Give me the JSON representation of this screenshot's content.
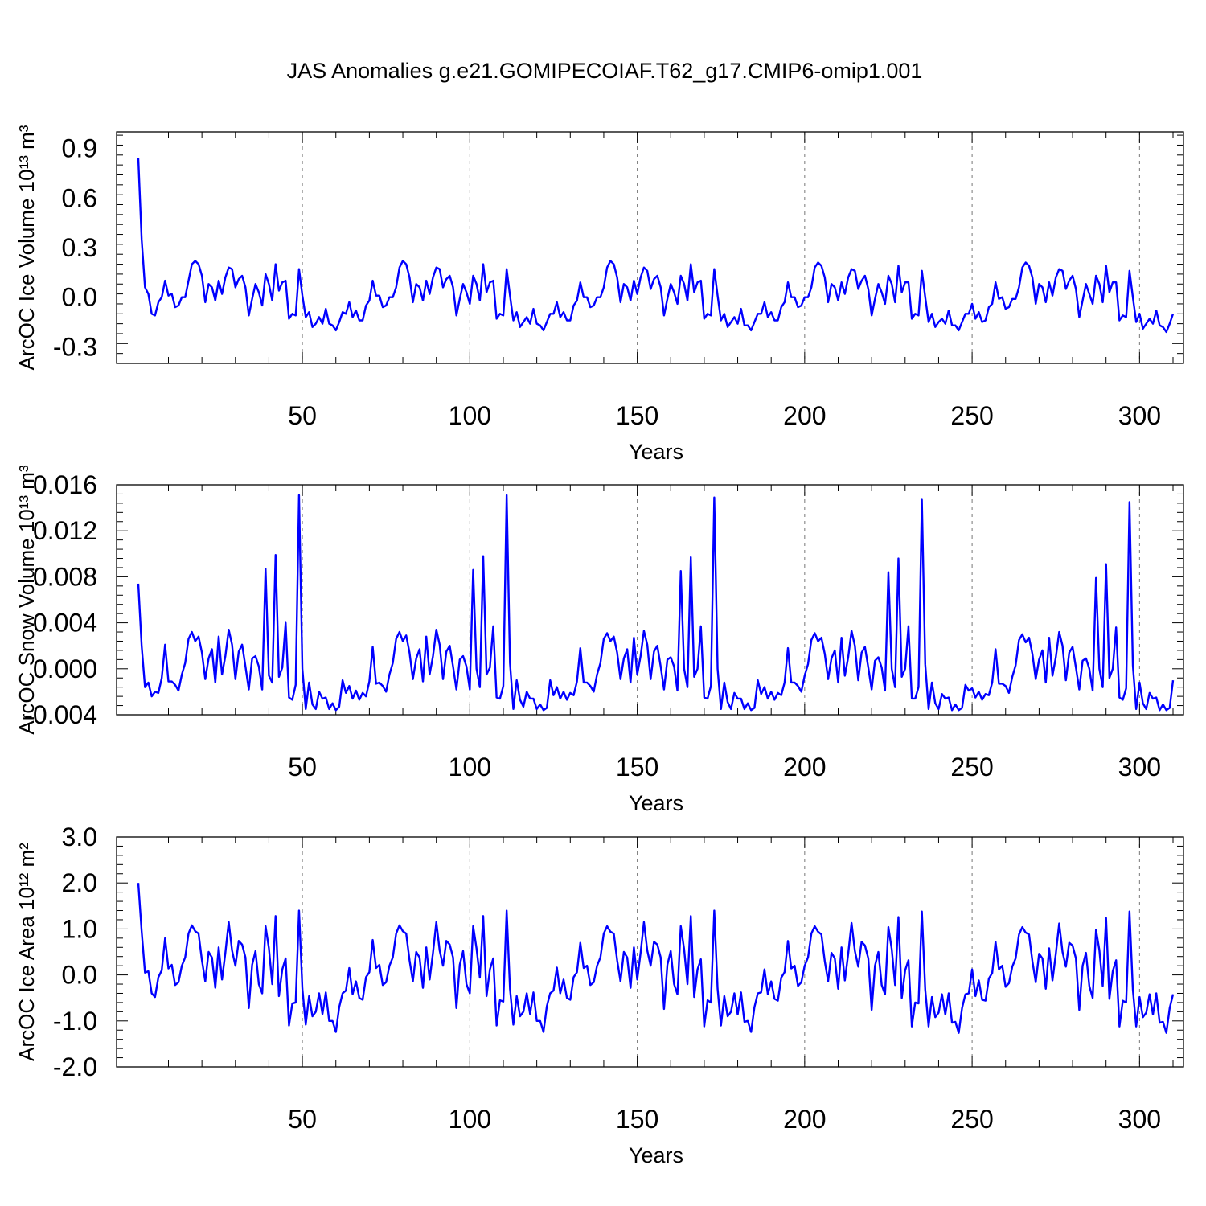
{
  "figure_title": "JAS Anomalies g.e21.GOMIPECOIAF.T62_g17.CMIP6-omip1.001",
  "line_color": "#0000ff",
  "chart_data": [
    {
      "type": "line",
      "title": "JAS Anomalies g.e21.GOMIPECOIAF.T62_g17.CMIP6-omip1.001",
      "xlabel": "Years",
      "ylabel": "ArcOC Ice Volume 10¹³ m³",
      "ylim": [
        -0.4,
        1.0
      ],
      "xlim": [
        1,
        310
      ],
      "xticks": [
        "50",
        "100",
        "150",
        "200",
        "250",
        "300"
      ],
      "yticks": [
        "0.9",
        "0.6",
        "0.3",
        "0.0",
        "-0.3"
      ],
      "series": [
        {
          "name": "ArcOC Ice Volume",
          "x_start": 1,
          "values": [
            0.84,
            0.35,
            0.06,
            0.02,
            -0.1,
            -0.11,
            -0.03,
            0.0,
            0.1,
            0.01,
            0.02,
            -0.06,
            -0.05,
            0.0,
            0.0,
            0.1,
            0.2,
            0.22,
            0.2,
            0.13,
            -0.03,
            0.08,
            0.06,
            -0.02,
            0.1,
            0.02,
            0.12,
            0.18,
            0.17,
            0.06,
            0.11,
            0.13,
            0.06,
            -0.11,
            -0.01,
            0.08,
            0.03,
            -0.05,
            0.14,
            0.08,
            -0.02,
            0.2,
            0.04,
            0.09,
            0.1,
            -0.13,
            -0.1,
            -0.11,
            0.17,
            0.01,
            -0.12,
            -0.09,
            -0.18,
            -0.16,
            -0.12,
            -0.16,
            -0.07,
            -0.16,
            -0.17,
            -0.2,
            -0.15,
            -0.09,
            -0.1,
            -0.03,
            -0.12,
            -0.08,
            -0.14,
            -0.14,
            -0.05,
            -0.02,
            0.1,
            0.01,
            0.01,
            -0.06,
            -0.05,
            0.0,
            0.0,
            0.06,
            0.18,
            0.22,
            0.2,
            0.12,
            -0.03,
            0.08,
            0.06,
            -0.02,
            0.1,
            0.02,
            0.12,
            0.18,
            0.17,
            0.06,
            0.11,
            0.13,
            0.06,
            -0.11,
            -0.01,
            0.08,
            0.03,
            -0.04,
            0.13,
            0.08,
            -0.02,
            0.2,
            0.03,
            0.09,
            0.1,
            -0.13,
            -0.1,
            -0.11,
            0.17,
            0.01,
            -0.14,
            -0.09,
            -0.18,
            -0.15,
            -0.12,
            -0.16,
            -0.07,
            -0.16,
            -0.17,
            -0.2,
            -0.15,
            -0.1,
            -0.1,
            -0.03,
            -0.12,
            -0.09,
            -0.14,
            -0.14,
            -0.05,
            -0.02,
            0.09,
            0.0,
            0.0,
            -0.06,
            -0.05,
            0.0,
            0.0,
            0.06,
            0.18,
            0.22,
            0.2,
            0.12,
            -0.03,
            0.08,
            0.06,
            -0.02,
            0.1,
            0.02,
            0.12,
            0.18,
            0.16,
            0.05,
            0.11,
            0.13,
            0.06,
            -0.11,
            -0.01,
            0.08,
            0.03,
            -0.04,
            0.13,
            0.08,
            -0.02,
            0.2,
            0.03,
            0.09,
            0.1,
            -0.13,
            -0.1,
            -0.11,
            0.17,
            0.01,
            -0.14,
            -0.1,
            -0.18,
            -0.15,
            -0.12,
            -0.16,
            -0.07,
            -0.17,
            -0.17,
            -0.2,
            -0.15,
            -0.1,
            -0.1,
            -0.03,
            -0.12,
            -0.09,
            -0.14,
            -0.14,
            -0.06,
            -0.03,
            0.09,
            0.0,
            0.0,
            -0.06,
            -0.05,
            0.0,
            0.0,
            0.06,
            0.18,
            0.21,
            0.19,
            0.12,
            -0.03,
            0.08,
            0.06,
            -0.02,
            0.09,
            0.02,
            0.12,
            0.17,
            0.16,
            0.05,
            0.1,
            0.13,
            0.05,
            -0.11,
            -0.01,
            0.08,
            0.03,
            -0.04,
            0.13,
            0.08,
            -0.03,
            0.19,
            0.03,
            0.09,
            0.09,
            -0.13,
            -0.1,
            -0.11,
            0.16,
            0.0,
            -0.15,
            -0.1,
            -0.18,
            -0.15,
            -0.13,
            -0.16,
            -0.08,
            -0.17,
            -0.17,
            -0.2,
            -0.15,
            -0.1,
            -0.1,
            -0.04,
            -0.13,
            -0.09,
            -0.15,
            -0.14,
            -0.06,
            -0.04,
            0.09,
            -0.01,
            0.0,
            -0.07,
            -0.06,
            -0.01,
            -0.01,
            0.06,
            0.18,
            0.21,
            0.19,
            0.12,
            -0.04,
            0.08,
            0.06,
            -0.03,
            0.09,
            0.01,
            0.12,
            0.17,
            0.16,
            0.05,
            0.1,
            0.13,
            0.05,
            -0.12,
            -0.02,
            0.08,
            0.02,
            -0.04,
            0.13,
            0.08,
            -0.03,
            0.19,
            0.03,
            0.09,
            0.09,
            -0.14,
            -0.11,
            -0.12,
            0.16,
            0.0,
            -0.15,
            -0.1,
            -0.19,
            -0.16,
            -0.13,
            -0.16,
            -0.08,
            -0.17,
            -0.18,
            -0.21,
            -0.16,
            -0.1
          ]
        }
      ]
    },
    {
      "type": "line",
      "xlabel": "Years",
      "ylabel": "ArcOC Snow Volume 10¹³ m³",
      "ylim": [
        -0.004,
        0.016
      ],
      "xlim": [
        1,
        310
      ],
      "xticks": [
        "50",
        "100",
        "150",
        "200",
        "250",
        "300"
      ],
      "yticks": [
        "0.016",
        "0.012",
        "0.008",
        "0.004",
        "0.000",
        "-0.004"
      ],
      "series": [
        {
          "name": "ArcOC Snow Volume",
          "x_start": 1,
          "values": [
            0.0074,
            0.002,
            -0.0016,
            -0.0012,
            -0.0024,
            -0.002,
            -0.0021,
            -0.0008,
            0.0021,
            -0.0011,
            -0.0011,
            -0.0014,
            -0.0019,
            -0.0005,
            0.0005,
            0.0026,
            0.0032,
            0.0024,
            0.0028,
            0.0014,
            -0.0009,
            0.0009,
            0.0017,
            -0.0012,
            0.0028,
            -0.0005,
            0.0011,
            0.0034,
            0.0021,
            -0.0009,
            0.0015,
            0.0021,
            0.0002,
            -0.0018,
            0.0009,
            0.0011,
            0.0002,
            -0.0018,
            0.0087,
            -0.0006,
            -0.0012,
            0.0099,
            -0.0007,
            0.0001,
            0.004,
            -0.0025,
            -0.0027,
            -0.0014,
            0.0151,
            0.0,
            -0.0035,
            -0.0012,
            -0.0031,
            -0.0035,
            -0.002,
            -0.0026,
            -0.0025,
            -0.0035,
            -0.003,
            -0.0036,
            -0.0033,
            -0.001,
            -0.0021,
            -0.0015,
            -0.0026,
            -0.0019,
            -0.0027,
            -0.0021,
            -0.0024,
            -0.0011,
            0.0019,
            -0.0013,
            -0.0012,
            -0.0015,
            -0.002,
            -0.0005,
            0.0005,
            0.0026,
            0.0032,
            0.0024,
            0.0029,
            0.0014,
            -0.0009,
            0.0009,
            0.0017,
            -0.0011,
            0.0028,
            -0.0005,
            0.0011,
            0.0034,
            0.0021,
            -0.0009,
            0.0015,
            0.002,
            0.0002,
            -0.0018,
            0.0008,
            0.0011,
            0.0002,
            -0.0018,
            0.0086,
            0.0,
            -0.0016,
            0.0098,
            -0.0005,
            0.0001,
            0.0037,
            -0.0025,
            -0.0026,
            -0.0015,
            0.0151,
            0.0005,
            -0.0035,
            -0.001,
            -0.0027,
            -0.0033,
            -0.002,
            -0.0026,
            -0.0026,
            -0.0035,
            -0.0031,
            -0.0036,
            -0.0034,
            -0.001,
            -0.0023,
            -0.0016,
            -0.0026,
            -0.002,
            -0.0027,
            -0.0021,
            -0.0023,
            -0.0011,
            0.0018,
            -0.0012,
            -0.0012,
            -0.0015,
            -0.002,
            -0.0005,
            0.0005,
            0.0026,
            0.0031,
            0.0024,
            0.0028,
            0.0014,
            -0.0009,
            0.0009,
            0.0017,
            -0.0012,
            0.0027,
            -0.0005,
            0.0011,
            0.0033,
            0.0021,
            -0.0009,
            0.0015,
            0.002,
            0.0002,
            -0.0018,
            0.0008,
            0.001,
            0.0002,
            -0.0019,
            0.0085,
            0.0,
            -0.0016,
            0.0097,
            -0.0007,
            0.0,
            0.0037,
            -0.0025,
            -0.0026,
            -0.0015,
            0.0149,
            0.0,
            -0.0035,
            -0.0012,
            -0.0029,
            -0.0035,
            -0.0021,
            -0.0026,
            -0.0026,
            -0.0035,
            -0.003,
            -0.0036,
            -0.0034,
            -0.001,
            -0.0022,
            -0.0016,
            -0.0026,
            -0.002,
            -0.0027,
            -0.0021,
            -0.0023,
            -0.0012,
            0.0018,
            -0.0012,
            -0.0012,
            -0.0015,
            -0.002,
            -0.0006,
            0.0004,
            0.0025,
            0.0031,
            0.0024,
            0.0027,
            0.0013,
            -0.0009,
            0.0009,
            0.0016,
            -0.0012,
            0.0027,
            -0.0006,
            0.001,
            0.0033,
            0.002,
            -0.001,
            0.0014,
            0.0019,
            0.0001,
            -0.0018,
            0.0007,
            0.001,
            0.0001,
            -0.0019,
            0.0084,
            0.0,
            -0.0016,
            0.0096,
            -0.0007,
            0.0,
            0.0037,
            -0.0026,
            -0.0026,
            -0.0016,
            0.0147,
            0.0004,
            -0.0035,
            -0.0012,
            -0.003,
            -0.0035,
            -0.0022,
            -0.0026,
            -0.0025,
            -0.0036,
            -0.0031,
            -0.0036,
            -0.0034,
            -0.0014,
            -0.0019,
            -0.0017,
            -0.0025,
            -0.002,
            -0.0027,
            -0.0022,
            -0.0023,
            -0.0012,
            0.0017,
            -0.0013,
            -0.0013,
            -0.0015,
            -0.0021,
            -0.0007,
            0.0003,
            0.0025,
            0.003,
            0.0023,
            0.0027,
            0.0013,
            -0.0009,
            0.0008,
            0.0016,
            -0.0012,
            0.0027,
            -0.0006,
            0.001,
            0.0032,
            0.002,
            -0.001,
            0.0014,
            0.0019,
            0.0001,
            -0.0018,
            0.0007,
            0.0009,
            0.0,
            -0.0019,
            0.0079,
            0.0,
            -0.0016,
            0.0091,
            -0.0008,
            0.0,
            0.0036,
            -0.0025,
            -0.0027,
            -0.0017,
            0.0145,
            0.0003,
            -0.0035,
            -0.0012,
            -0.003,
            -0.0035,
            -0.0021,
            -0.0026,
            -0.0025,
            -0.0036,
            -0.0031,
            -0.0036,
            -0.0034,
            -0.001
          ]
        }
      ]
    },
    {
      "type": "line",
      "xlabel": "Years",
      "ylabel": "ArcOC Ice Area 10¹² m²",
      "ylim": [
        -2.0,
        3.0
      ],
      "xlim": [
        1,
        310
      ],
      "xticks": [
        "50",
        "100",
        "150",
        "200",
        "250",
        "300"
      ],
      "yticks": [
        "3.0",
        "2.0",
        "1.0",
        "0.0",
        "-1.0",
        "-2.0"
      ],
      "series": [
        {
          "name": "ArcOC Ice Area",
          "x_start": 1,
          "values": [
            2.0,
            0.95,
            0.05,
            0.08,
            -0.4,
            -0.48,
            -0.05,
            0.1,
            0.8,
            0.14,
            0.22,
            -0.22,
            -0.16,
            0.2,
            0.38,
            0.9,
            1.08,
            0.95,
            0.9,
            0.32,
            -0.14,
            0.5,
            0.38,
            -0.28,
            0.6,
            -0.1,
            0.48,
            1.15,
            0.53,
            0.2,
            0.74,
            0.66,
            0.38,
            -0.72,
            0.22,
            0.52,
            -0.2,
            -0.4,
            1.06,
            0.58,
            -0.2,
            1.28,
            -0.46,
            0.12,
            0.36,
            -1.1,
            -0.62,
            -0.6,
            1.4,
            -0.3,
            -1.08,
            -0.46,
            -0.9,
            -0.8,
            -0.4,
            -0.85,
            -0.38,
            -1.0,
            -1.0,
            -1.24,
            -0.7,
            -0.4,
            -0.34,
            0.15,
            -0.42,
            -0.14,
            -0.5,
            -0.54,
            -0.05,
            0.06,
            0.76,
            0.15,
            0.22,
            -0.22,
            -0.16,
            0.2,
            0.38,
            0.9,
            1.08,
            0.95,
            0.9,
            0.32,
            -0.14,
            0.5,
            0.38,
            -0.28,
            0.6,
            -0.1,
            0.48,
            1.15,
            0.53,
            0.2,
            0.74,
            0.66,
            0.38,
            -0.72,
            0.22,
            0.52,
            -0.2,
            -0.4,
            1.06,
            0.58,
            -0.06,
            1.28,
            -0.46,
            0.12,
            0.36,
            -1.1,
            -0.55,
            -0.58,
            1.4,
            -0.3,
            -1.08,
            -0.46,
            -0.9,
            -0.8,
            -0.4,
            -0.85,
            -0.38,
            -1.0,
            -1.0,
            -1.24,
            -0.68,
            -0.4,
            -0.34,
            0.16,
            -0.4,
            -0.1,
            -0.5,
            -0.54,
            -0.05,
            0.06,
            0.7,
            0.15,
            0.2,
            -0.22,
            -0.16,
            0.2,
            0.38,
            0.9,
            1.06,
            0.94,
            0.9,
            0.32,
            -0.14,
            0.5,
            0.38,
            -0.28,
            0.6,
            -0.1,
            0.48,
            1.15,
            0.53,
            0.2,
            0.72,
            0.66,
            0.38,
            -0.74,
            0.22,
            0.52,
            -0.2,
            -0.42,
            1.06,
            0.56,
            -0.2,
            1.28,
            -0.48,
            0.12,
            0.34,
            -1.12,
            -0.55,
            -0.6,
            1.4,
            -0.3,
            -1.1,
            -0.46,
            -0.9,
            -0.8,
            -0.4,
            -0.86,
            -0.38,
            -1.02,
            -1.0,
            -1.24,
            -0.7,
            -0.4,
            -0.38,
            0.12,
            -0.42,
            -0.14,
            -0.52,
            -0.56,
            -0.06,
            0.06,
            0.74,
            0.14,
            0.2,
            -0.24,
            -0.16,
            0.2,
            0.38,
            0.9,
            1.06,
            0.94,
            0.88,
            0.3,
            -0.14,
            0.48,
            0.36,
            -0.3,
            0.6,
            -0.12,
            0.46,
            1.13,
            0.52,
            0.18,
            0.72,
            0.64,
            0.36,
            -0.76,
            0.2,
            0.5,
            -0.22,
            -0.42,
            1.04,
            0.56,
            -0.22,
            1.26,
            -0.5,
            0.1,
            0.32,
            -1.12,
            -0.6,
            -0.62,
            1.38,
            -0.32,
            -1.12,
            -0.48,
            -0.92,
            -0.82,
            -0.42,
            -0.86,
            -0.4,
            -1.04,
            -1.02,
            -1.26,
            -0.72,
            -0.42,
            -0.4,
            0.12,
            -0.46,
            -0.12,
            -0.54,
            -0.56,
            -0.08,
            0.04,
            0.72,
            0.12,
            0.2,
            -0.26,
            -0.18,
            0.18,
            0.36,
            0.88,
            1.04,
            0.92,
            0.88,
            0.3,
            -0.16,
            0.46,
            0.36,
            -0.3,
            0.58,
            -0.12,
            0.46,
            1.12,
            0.5,
            0.18,
            0.7,
            0.64,
            0.36,
            -0.76,
            0.2,
            0.48,
            -0.24,
            -0.5,
            0.98,
            0.54,
            -0.24,
            1.24,
            -0.52,
            0.08,
            0.32,
            -1.12,
            -0.56,
            -0.6,
            1.38,
            -0.32,
            -1.12,
            -0.48,
            -0.92,
            -0.82,
            -0.42,
            -0.86,
            -0.4,
            -1.04,
            -1.02,
            -1.26,
            -0.72,
            -0.42
          ]
        }
      ]
    }
  ]
}
